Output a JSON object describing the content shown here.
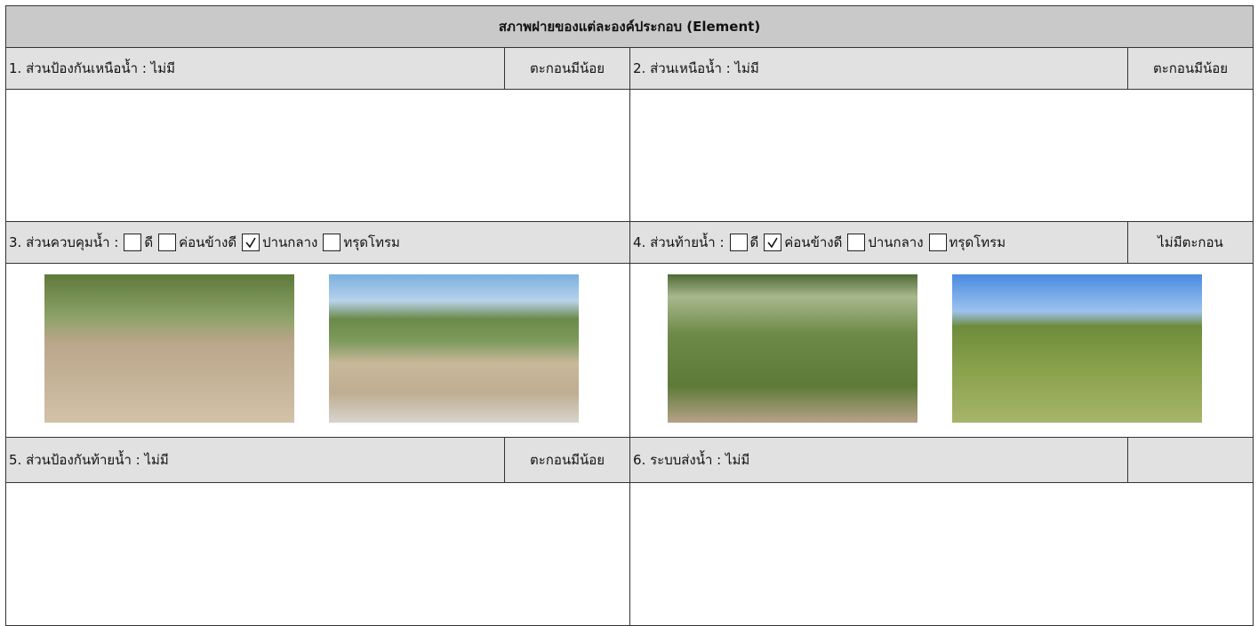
{
  "title": "สภาพฝายของแต่ละองค์ประกอบ (Element)",
  "sections": [
    {
      "label": "1. ส่วนป้องกันเหนือน้ำ : ไม่มี",
      "status": "ตะกอนมีน้อย"
    },
    {
      "label": "2. ส่วนเหนือน้ำ : ไม่มี",
      "status": "ตะกอนมีน้อย"
    },
    {
      "label": "3. ส่วนควบคุมน้ำ :",
      "options": [
        {
          "label": "ดี",
          "checked": false
        },
        {
          "label": "ค่อนข้างดี",
          "checked": false
        },
        {
          "label": "ปานกลาง",
          "checked": true
        },
        {
          "label": "ทรุดโทรม",
          "checked": false
        }
      ]
    },
    {
      "label": "4. ส่วนท้ายน้ำ :",
      "options": [
        {
          "label": "ดี",
          "checked": false
        },
        {
          "label": "ค่อนข้างดี",
          "checked": true
        },
        {
          "label": "ปานกลาง",
          "checked": false
        },
        {
          "label": "ทรุดโทรม",
          "checked": false
        }
      ],
      "status": "ไม่มีตะกอน"
    },
    {
      "label": "5. ส่วนป้องกันท้ายน้ำ : ไม่มี",
      "status": "ตะกอนมีน้อย"
    },
    {
      "label": "6. ระบบส่งน้ำ : ไม่มี"
    }
  ]
}
